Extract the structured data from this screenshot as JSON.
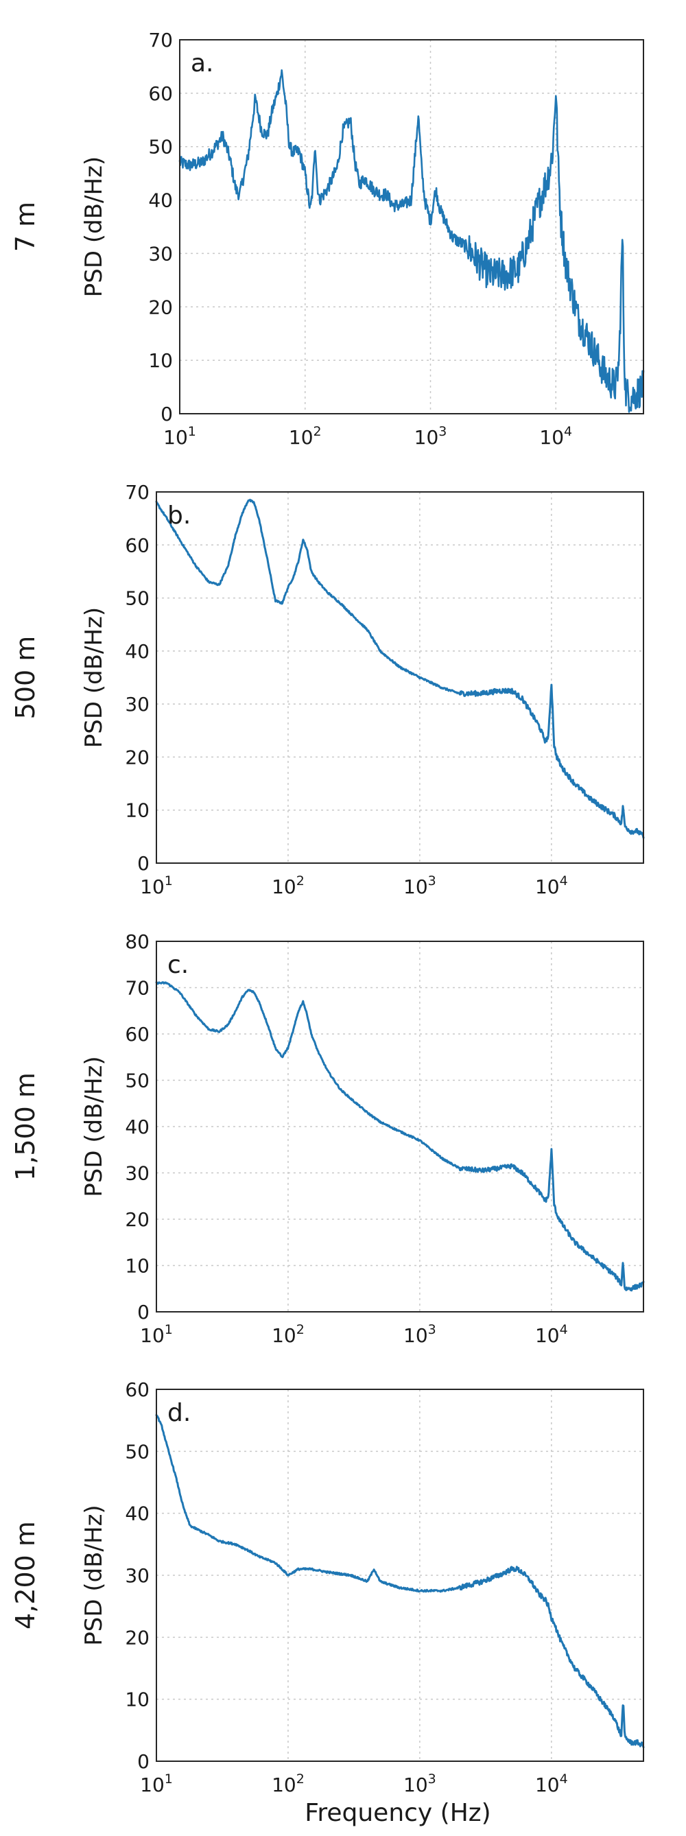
{
  "figure": {
    "xlabel": "Frequency (Hz)",
    "colors": {
      "line": "#1f77b4",
      "frame": "#262626",
      "grid": "#c8c8c8"
    }
  },
  "chart_data": [
    {
      "type": "line",
      "panel_label": "a.",
      "depth_label": "7 m",
      "ylabel": "PSD (dB/Hz)",
      "xscale": "log",
      "xlim": [
        10,
        50000
      ],
      "ylim": [
        0,
        70
      ],
      "yticks": [
        "0",
        "10",
        "20",
        "30",
        "40",
        "50",
        "60",
        "70"
      ],
      "xticks": [
        {
          "base": "10",
          "exp": "1"
        },
        {
          "base": "10",
          "exp": "2"
        },
        {
          "base": "10",
          "exp": "3"
        },
        {
          "base": "10",
          "exp": "4"
        }
      ],
      "grid": true,
      "noise": 4,
      "series": [
        {
          "x": [
            10,
            12,
            15,
            18,
            22,
            25,
            28,
            30,
            35,
            40,
            45,
            50,
            55,
            60,
            65,
            70,
            75,
            80,
            90,
            100,
            110,
            115,
            120,
            125,
            130,
            150,
            180,
            200,
            230,
            250,
            270,
            300,
            350,
            400,
            450,
            500,
            600,
            700,
            750,
            800,
            850,
            900,
            1000,
            1100,
            1200,
            1500,
            2000,
            2500,
            3000,
            4000,
            5000,
            6000,
            7000,
            8000,
            8500,
            9000,
            9500,
            10000,
            10500,
            11000,
            12000,
            15000,
            20000,
            25000,
            30000,
            32000,
            34000,
            35000,
            36000,
            40000,
            45000,
            50000
          ],
          "y": [
            47,
            46.5,
            47,
            49,
            52,
            48,
            42,
            41,
            48,
            59,
            53,
            52,
            57,
            60,
            64,
            58,
            50,
            49,
            49,
            45,
            38,
            42,
            51,
            43,
            40,
            42,
            46,
            53,
            55,
            47,
            43,
            44,
            42,
            41,
            41,
            39,
            39,
            40,
            48,
            56,
            46,
            40,
            36,
            42,
            38,
            33,
            31,
            28,
            26,
            26,
            27,
            32,
            38,
            42,
            44,
            46,
            50,
            61,
            45,
            36,
            28,
            18,
            12,
            7,
            5,
            10,
            34,
            12,
            4,
            3,
            4,
            5
          ]
        }
      ]
    },
    {
      "type": "line",
      "panel_label": "b.",
      "depth_label": "500 m",
      "ylabel": "PSD (dB/Hz)",
      "xscale": "log",
      "xlim": [
        10,
        50000
      ],
      "ylim": [
        0,
        70
      ],
      "yticks": [
        "0",
        "10",
        "20",
        "30",
        "40",
        "50",
        "60",
        "70"
      ],
      "xticks": [
        {
          "base": "10",
          "exp": "1"
        },
        {
          "base": "10",
          "exp": "2"
        },
        {
          "base": "10",
          "exp": "3"
        },
        {
          "base": "10",
          "exp": "4"
        }
      ],
      "grid": true,
      "noise": 0.6,
      "series": [
        {
          "x": [
            10,
            12,
            15,
            20,
            25,
            30,
            35,
            40,
            45,
            50,
            55,
            60,
            70,
            80,
            90,
            100,
            110,
            120,
            130,
            140,
            150,
            170,
            200,
            250,
            300,
            400,
            500,
            700,
            1000,
            1500,
            2000,
            3000,
            4000,
            5000,
            6000,
            8000,
            9000,
            9500,
            10000,
            10500,
            11000,
            12000,
            15000,
            20000,
            30000,
            34000,
            35000,
            36000,
            40000,
            45000,
            50000
          ],
          "y": [
            68,
            65,
            61,
            56,
            53,
            52.5,
            56,
            62,
            66,
            68.5,
            68,
            65,
            57,
            49.5,
            49,
            52,
            54,
            57,
            61,
            59,
            55,
            53,
            51,
            49,
            47,
            44,
            40,
            37,
            35,
            33,
            32,
            32,
            32.5,
            32.5,
            31,
            26,
            23,
            24,
            34,
            22,
            20,
            18,
            15,
            12,
            9,
            7.5,
            11,
            7,
            6,
            6,
            5
          ]
        }
      ]
    },
    {
      "type": "line",
      "panel_label": "c.",
      "depth_label": "1,500 m",
      "ylabel": "PSD (dB/Hz)",
      "xscale": "log",
      "xlim": [
        10,
        50000
      ],
      "ylim": [
        0,
        80
      ],
      "yticks": [
        "0",
        "10",
        "20",
        "30",
        "40",
        "50",
        "60",
        "70",
        "80"
      ],
      "xticks": [
        {
          "base": "10",
          "exp": "1"
        },
        {
          "base": "10",
          "exp": "2"
        },
        {
          "base": "10",
          "exp": "3"
        },
        {
          "base": "10",
          "exp": "4"
        }
      ],
      "grid": true,
      "noise": 0.6,
      "series": [
        {
          "x": [
            10,
            12,
            15,
            20,
            25,
            30,
            35,
            40,
            45,
            50,
            55,
            60,
            70,
            80,
            90,
            100,
            110,
            120,
            130,
            140,
            150,
            170,
            200,
            250,
            300,
            400,
            500,
            700,
            1000,
            1500,
            2000,
            3000,
            4000,
            5000,
            6000,
            8000,
            9000,
            9500,
            10000,
            10500,
            11000,
            12000,
            15000,
            20000,
            30000,
            34000,
            35000,
            36000,
            40000,
            45000,
            50000
          ],
          "y": [
            71,
            71,
            69,
            64,
            61,
            60.5,
            62,
            65,
            68,
            69.5,
            69,
            67,
            62,
            57,
            55,
            57,
            61,
            65,
            67,
            64,
            60,
            56,
            52,
            48,
            46,
            43,
            41,
            39,
            37,
            33,
            31,
            30.5,
            31,
            31.5,
            30,
            26,
            24,
            25,
            35,
            23,
            21,
            19,
            15,
            12,
            8,
            6,
            11,
            5,
            5,
            5.5,
            6
          ]
        }
      ]
    },
    {
      "type": "line",
      "panel_label": "d.",
      "depth_label": "4,200 m",
      "ylabel": "PSD (dB/Hz)",
      "xscale": "log",
      "xlim": [
        10,
        50000
      ],
      "ylim": [
        0,
        60
      ],
      "yticks": [
        "0",
        "10",
        "20",
        "30",
        "40",
        "50",
        "60"
      ],
      "xticks": [
        {
          "base": "10",
          "exp": "1"
        },
        {
          "base": "10",
          "exp": "2"
        },
        {
          "base": "10",
          "exp": "3"
        },
        {
          "base": "10",
          "exp": "4"
        }
      ],
      "grid": true,
      "noise": 0.5,
      "series": [
        {
          "x": [
            10,
            11,
            12,
            14,
            16,
            18,
            20,
            25,
            30,
            40,
            50,
            60,
            70,
            80,
            90,
            100,
            120,
            150,
            200,
            300,
            400,
            450,
            500,
            700,
            1000,
            1500,
            2000,
            3000,
            4000,
            5000,
            5500,
            6000,
            7000,
            8000,
            9000,
            9500,
            10000,
            10500,
            11000,
            12000,
            15000,
            20000,
            30000,
            34000,
            35000,
            36000,
            40000,
            45000,
            50000
          ],
          "y": [
            56,
            54,
            51,
            46,
            41,
            38,
            37.5,
            36.5,
            35.5,
            35,
            34,
            33,
            32.5,
            32,
            31,
            30,
            31,
            31,
            30.5,
            30,
            29,
            31,
            29,
            28,
            27.5,
            27.5,
            28,
            29,
            30,
            31,
            31,
            30.5,
            29,
            27,
            26,
            25,
            23,
            22.5,
            21,
            19,
            15,
            12,
            7,
            4,
            10,
            4,
            3,
            3,
            2.5
          ]
        }
      ]
    }
  ]
}
